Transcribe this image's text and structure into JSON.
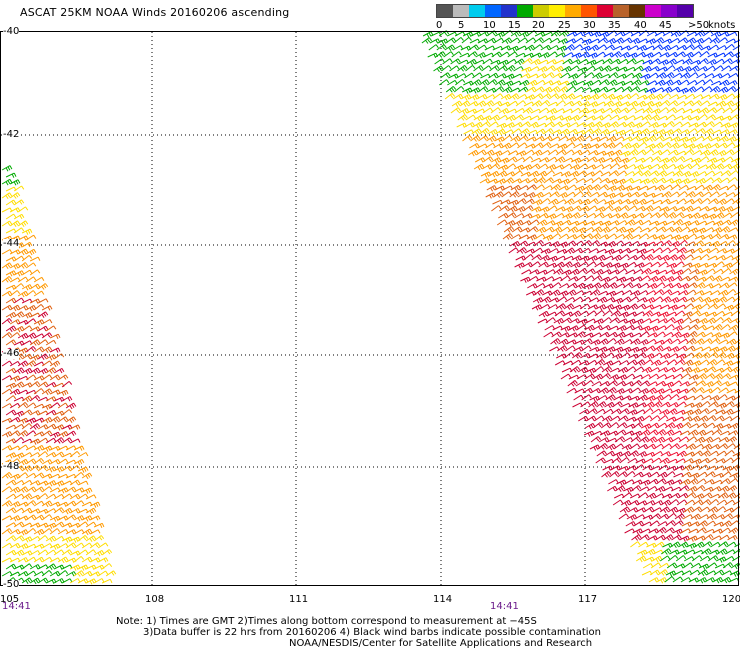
{
  "title": "ASCAT 25KM NOAA Winds 20160206 ascending",
  "legend": {
    "colors": [
      "#555555",
      "#bbbbbb",
      "#00ccee",
      "#0066ff",
      "#2233cc",
      "#00aa00",
      "#cccc00",
      "#ffee00",
      "#ffaa00",
      "#ff5500",
      "#dd0033",
      "#b8622a",
      "#663300",
      "#cc00cc",
      "#8800cc",
      "#5500aa"
    ],
    "ticks": [
      "0",
      "5",
      "10",
      "15",
      "20",
      "25",
      "30",
      "35",
      "40",
      "45",
      ">50",
      "knots"
    ],
    "segment_colors": {
      "green": "#00aa00",
      "blue": "#0033ff",
      "navy": "#2233aa",
      "yellow": "#ffdd00",
      "orange": "#ff9900",
      "darkorange": "#e06010",
      "crimson": "#cc0033",
      "red": "#ee1133",
      "brown": "#a0522d",
      "purple": "#8800cc"
    }
  },
  "axes": {
    "lat_labels": [
      "-40",
      "-42",
      "-44",
      "-46",
      "-48",
      "-50"
    ],
    "lon_labels": [
      "105",
      "108",
      "111",
      "114",
      "117",
      "120"
    ],
    "time_labels": [
      "14:41",
      "14:41"
    ]
  },
  "notes": {
    "line1": "Note: 1) Times are GMT 2)Times along bottom correspond to measurement at −45S",
    "line2": "3)Data buffer is 22 hrs from 20160206 4) Black wind barbs indicate possible contamination",
    "line3": "NOAA/NESDIS/Center for Satellite Applications and Research"
  }
}
